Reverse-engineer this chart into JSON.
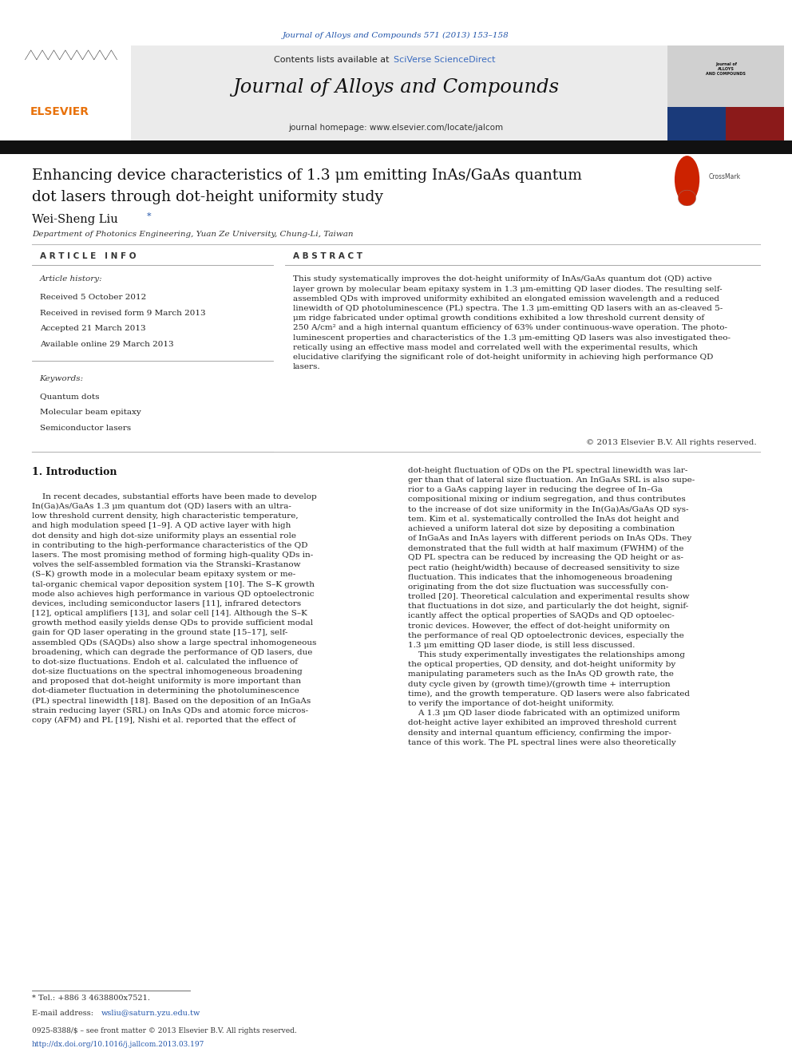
{
  "page_width": 9.92,
  "page_height": 13.23,
  "dpi": 100,
  "bg_color": "#ffffff",
  "header_citation": "Journal of Alloys and Compounds 571 (2013) 153–158",
  "header_citation_color": "#2255aa",
  "journal_name": "Journal of Alloys and Compounds",
  "journal_homepage": "journal homepage: www.elsevier.com/locate/jalcom",
  "contents_text": "Contents lists available at",
  "sciverse_text": "SciVerse ScienceDirect",
  "header_bg": "#ebebeb",
  "header_bar_color": "#111111",
  "article_title_line1": "Enhancing device characteristics of 1.3 μm emitting InAs/GaAs quantum",
  "article_title_line2": "dot lasers through dot-height uniformity study",
  "author": "Wei-Sheng Liu",
  "author_star": "*",
  "affiliation": "Department of Photonics Engineering, Yuan Ze University, Chung-Li, Taiwan",
  "article_info_header": "A R T I C L E   I N F O",
  "abstract_header": "A B S T R A C T",
  "article_history_label": "Article history:",
  "received1": "Received 5 October 2012",
  "received2": "Received in revised form 9 March 2013",
  "accepted": "Accepted 21 March 2013",
  "available": "Available online 29 March 2013",
  "keywords_label": "Keywords:",
  "keyword1": "Quantum dots",
  "keyword2": "Molecular beam epitaxy",
  "keyword3": "Semiconductor lasers",
  "abstract_wrapped": "This study systematically improves the dot-height uniformity of InAs/GaAs quantum dot (QD) active\nlayer grown by molecular beam epitaxy system in 1.3 μm-emitting QD laser diodes. The resulting self-\nassembled QDs with improved uniformity exhibited an elongated emission wavelength and a reduced\nlinewidth of QD photoluminescence (PL) spectra. The 1.3 μm-emitting QD lasers with an as-cleaved 5-\nμm ridge fabricated under optimal growth conditions exhibited a low threshold current density of\n250 A/cm² and a high internal quantum efficiency of 63% under continuous-wave operation. The photo-\nluminescent properties and characteristics of the 1.3 μm-emitting QD lasers was also investigated theo-\nretically using an effective mass model and correlated well with the experimental results, which\nelucidative clarifying the significant role of dot-height uniformity in achieving high performance QD\nlasers.",
  "copyright": "© 2013 Elsevier B.V. All rights reserved.",
  "intro_heading": "1. Introduction",
  "intro_col1": "    In recent decades, substantial efforts have been made to develop\nIn(Ga)As/GaAs 1.3 μm quantum dot (QD) lasers with an ultra-\nlow threshold current density, high characteristic temperature,\nand high modulation speed [1–9]. A QD active layer with high\ndot density and high dot-size uniformity plays an essential role\nin contributing to the high-performance characteristics of the QD\nlasers. The most promising method of forming high-quality QDs in-\nvolves the self-assembled formation via the Stranski–Krastanow\n(S–K) growth mode in a molecular beam epitaxy system or me-\ntal-organic chemical vapor deposition system [10]. The S–K growth\nmode also achieves high performance in various QD optoelectronic\ndevices, including semiconductor lasers [11], infrared detectors\n[12], optical amplifiers [13], and solar cell [14]. Although the S–K\ngrowth method easily yields dense QDs to provide sufficient modal\ngain for QD laser operating in the ground state [15–17], self-\nassembled QDs (SAQDs) also show a large spectral inhomogeneous\nbroadening, which can degrade the performance of QD lasers, due\nto dot-size fluctuations. Endoh et al. calculated the influence of\ndot-size fluctuations on the spectral inhomogeneous broadening\nand proposed that dot-height uniformity is more important than\ndot-diameter fluctuation in determining the photoluminescence\n(PL) spectral linewidth [18]. Based on the deposition of an InGaAs\nstrain reducing layer (SRL) on InAs QDs and atomic force micros-\ncopy (AFM) and PL [19], Nishi et al. reported that the effect of",
  "intro_col2": "dot-height fluctuation of QDs on the PL spectral linewidth was lar-\nger than that of lateral size fluctuation. An InGaAs SRL is also supe-\nrior to a GaAs capping layer in reducing the degree of In–Ga\ncompositional mixing or indium segregation, and thus contributes\nto the increase of dot size uniformity in the In(Ga)As/GaAs QD sys-\ntem. Kim et al. systematically controlled the InAs dot height and\nachieved a uniform lateral dot size by depositing a combination\nof InGaAs and InAs layers with different periods on InAs QDs. They\ndemonstrated that the full width at half maximum (FWHM) of the\nQD PL spectra can be reduced by increasing the QD height or as-\npect ratio (height/width) because of decreased sensitivity to size\nfluctuation. This indicates that the inhomogeneous broadening\noriginating from the dot size fluctuation was successfully con-\ntrolled [20]. Theoretical calculation and experimental results show\nthat fluctuations in dot size, and particularly the dot height, signif-\nicantly affect the optical properties of SAQDs and QD optoelec-\ntronic devices. However, the effect of dot-height uniformity on\nthe performance of real QD optoelectronic devices, especially the\n1.3 μm emitting QD laser diode, is still less discussed.\n    This study experimentally investigates the relationships among\nthe optical properties, QD density, and dot-height uniformity by\nmanipulating parameters such as the InAs QD growth rate, the\nduty cycle given by (growth time)/(growth time + interruption\ntime), and the growth temperature. QD lasers were also fabricated\nto verify the importance of dot-height uniformity.\n    A 1.3 μm QD laser diode fabricated with an optimized uniform\ndot-height active layer exhibited an improved threshold current\ndensity and internal quantum efficiency, confirming the impor-\ntance of this work. The PL spectral lines were also theoretically",
  "footnote_tel": "* Tel.: +886 3 4638800x7521.",
  "footnote_email_label": "E-mail address: ",
  "footnote_email_link": "wsliu@saturn.yzu.edu.tw",
  "footer_issn": "0925-8388/$ – see front matter © 2013 Elsevier B.V. All rights reserved.",
  "footer_doi": "http://dx.doi.org/10.1016/j.jallcom.2013.03.197",
  "elsevier_orange": "#e8720c",
  "link_blue": "#2255aa",
  "sciverse_blue": "#3a6bbf",
  "text_dark": "#111111",
  "text_mid": "#333333",
  "text_body": "#222222",
  "line_color": "#aaaaaa",
  "col_div": 0.355
}
